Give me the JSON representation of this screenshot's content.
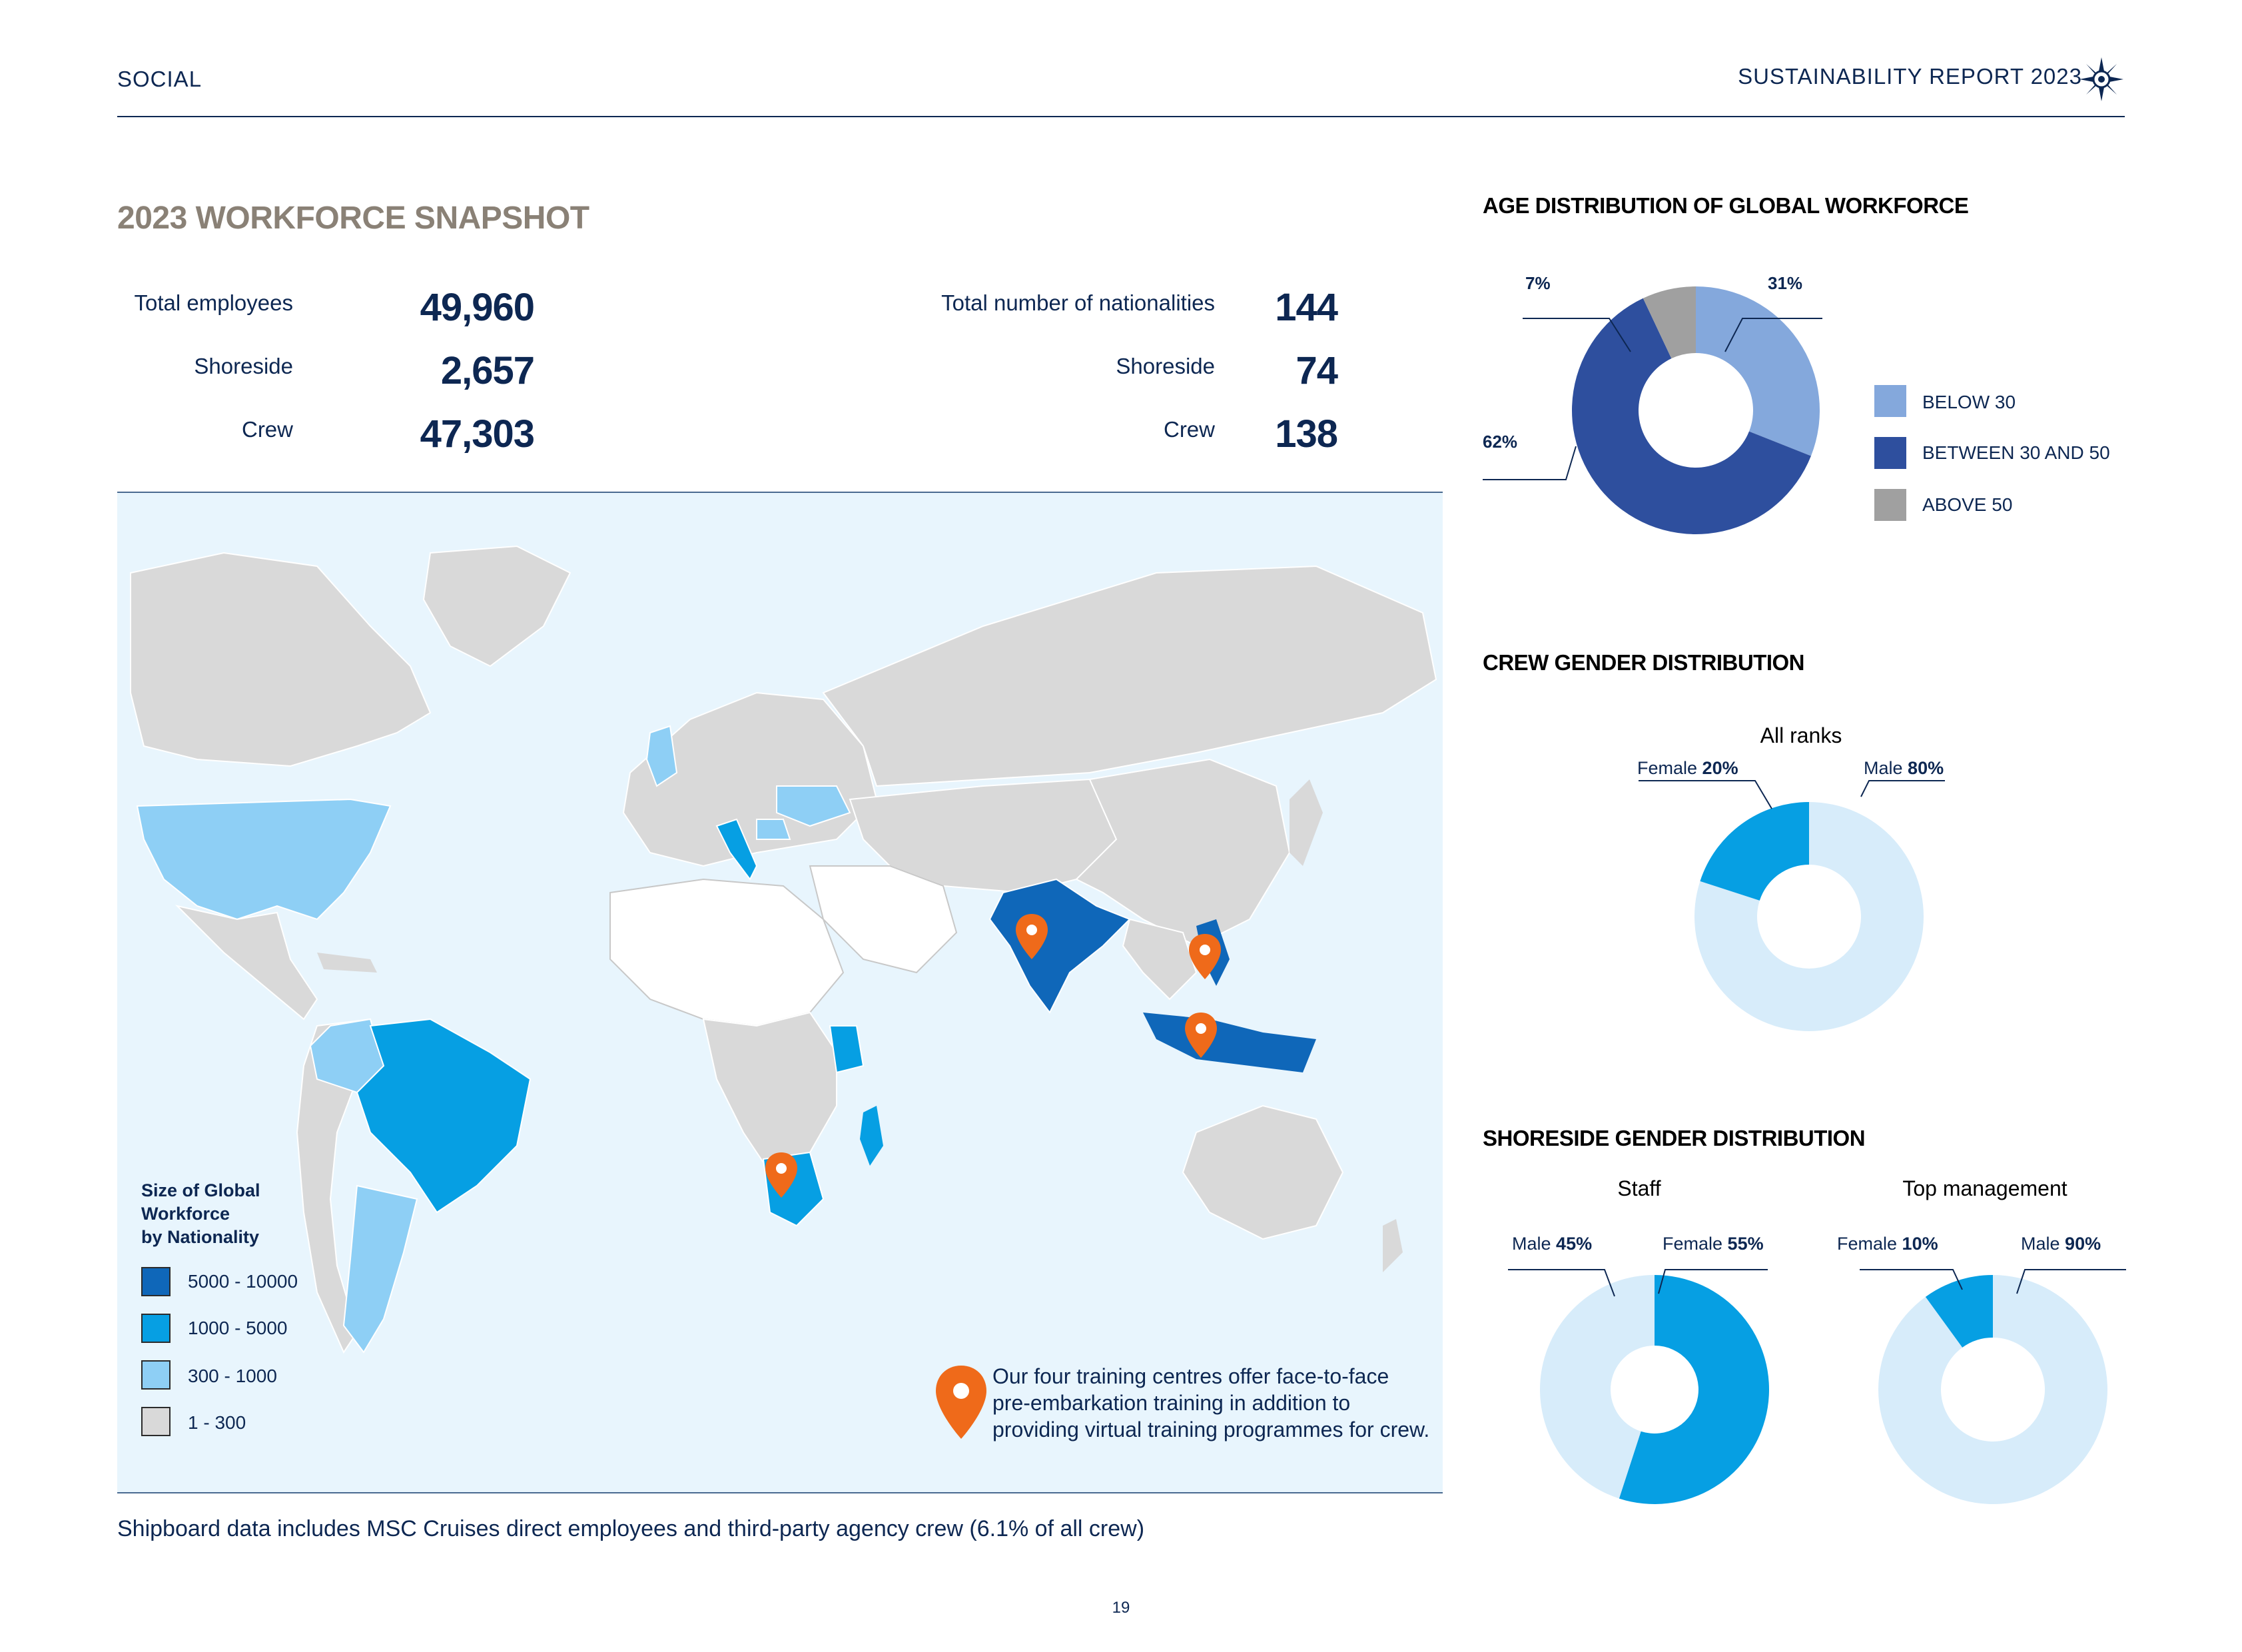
{
  "header": {
    "section": "SOCIAL",
    "report": "SUSTAINABILITY REPORT 2023",
    "logo_icon": "msc-compass-logo-icon"
  },
  "snapshot": {
    "title": "2023 WORKFORCE SNAPSHOT",
    "employees": [
      {
        "label": "Total employees",
        "value": "49,960"
      },
      {
        "label": "Shoreside",
        "value": "2,657"
      },
      {
        "label": "Crew",
        "value": "47,303"
      }
    ],
    "nationalities": [
      {
        "label": "Total number of nationalities",
        "value": "144"
      },
      {
        "label": "Shoreside",
        "value": "74"
      },
      {
        "label": "Crew",
        "value": "138"
      }
    ]
  },
  "map": {
    "legend_title_lines": [
      "Size of Global",
      "Workforce",
      "by Nationality"
    ],
    "legend": [
      {
        "label": "5000 - 10000",
        "color": "#0f67b9"
      },
      {
        "label": "1000 - 5000",
        "color": "#069fe3"
      },
      {
        "label": "300 - 1000",
        "color": "#8ecff5"
      },
      {
        "label": "1 - 300",
        "color": "#d9d9d9"
      }
    ],
    "note_lines": [
      "Our four training centres offer face-to-face",
      "pre-embarkation training in addition to",
      "providing virtual training programmes for crew."
    ],
    "pin_icon": "location-pin-icon",
    "pin_color": "#ef6a1a"
  },
  "footnote": "Shipboard data includes MSC Cruises direct employees and third-party agency crew (6.1% of all crew)",
  "page_number": "19",
  "chart_data": [
    {
      "type": "pie",
      "title": "AGE DISTRIBUTION OF GLOBAL WORKFORCE",
      "categories": [
        "BELOW 30",
        "BETWEEN 30 AND 50",
        "ABOVE 50"
      ],
      "values": [
        31,
        62,
        7
      ],
      "labels": [
        "31%",
        "62%",
        "7%"
      ],
      "colors": [
        "#84a8dc",
        "#2e4f9e",
        "#a0a0a0"
      ],
      "legend": "right"
    },
    {
      "type": "pie",
      "title": "CREW GENDER DISTRIBUTION",
      "subtitle": "All ranks",
      "categories": [
        "Female",
        "Male"
      ],
      "values": [
        20,
        80
      ],
      "labels": [
        "20%",
        "80%"
      ],
      "colors": [
        "#069fe3",
        "#d7ecfa"
      ]
    },
    {
      "type": "pie",
      "title": "SHORESIDE GENDER DISTRIBUTION",
      "subtitle": "Staff",
      "categories": [
        "Male",
        "Female"
      ],
      "values": [
        45,
        55
      ],
      "labels": [
        "45%",
        "55%"
      ],
      "colors": [
        "#d7ecfa",
        "#069fe3"
      ]
    },
    {
      "type": "pie",
      "subtitle": "Top management",
      "categories": [
        "Female",
        "Male"
      ],
      "values": [
        10,
        90
      ],
      "labels": [
        "10%",
        "90%"
      ],
      "colors": [
        "#069fe3",
        "#d7ecfa"
      ]
    }
  ]
}
